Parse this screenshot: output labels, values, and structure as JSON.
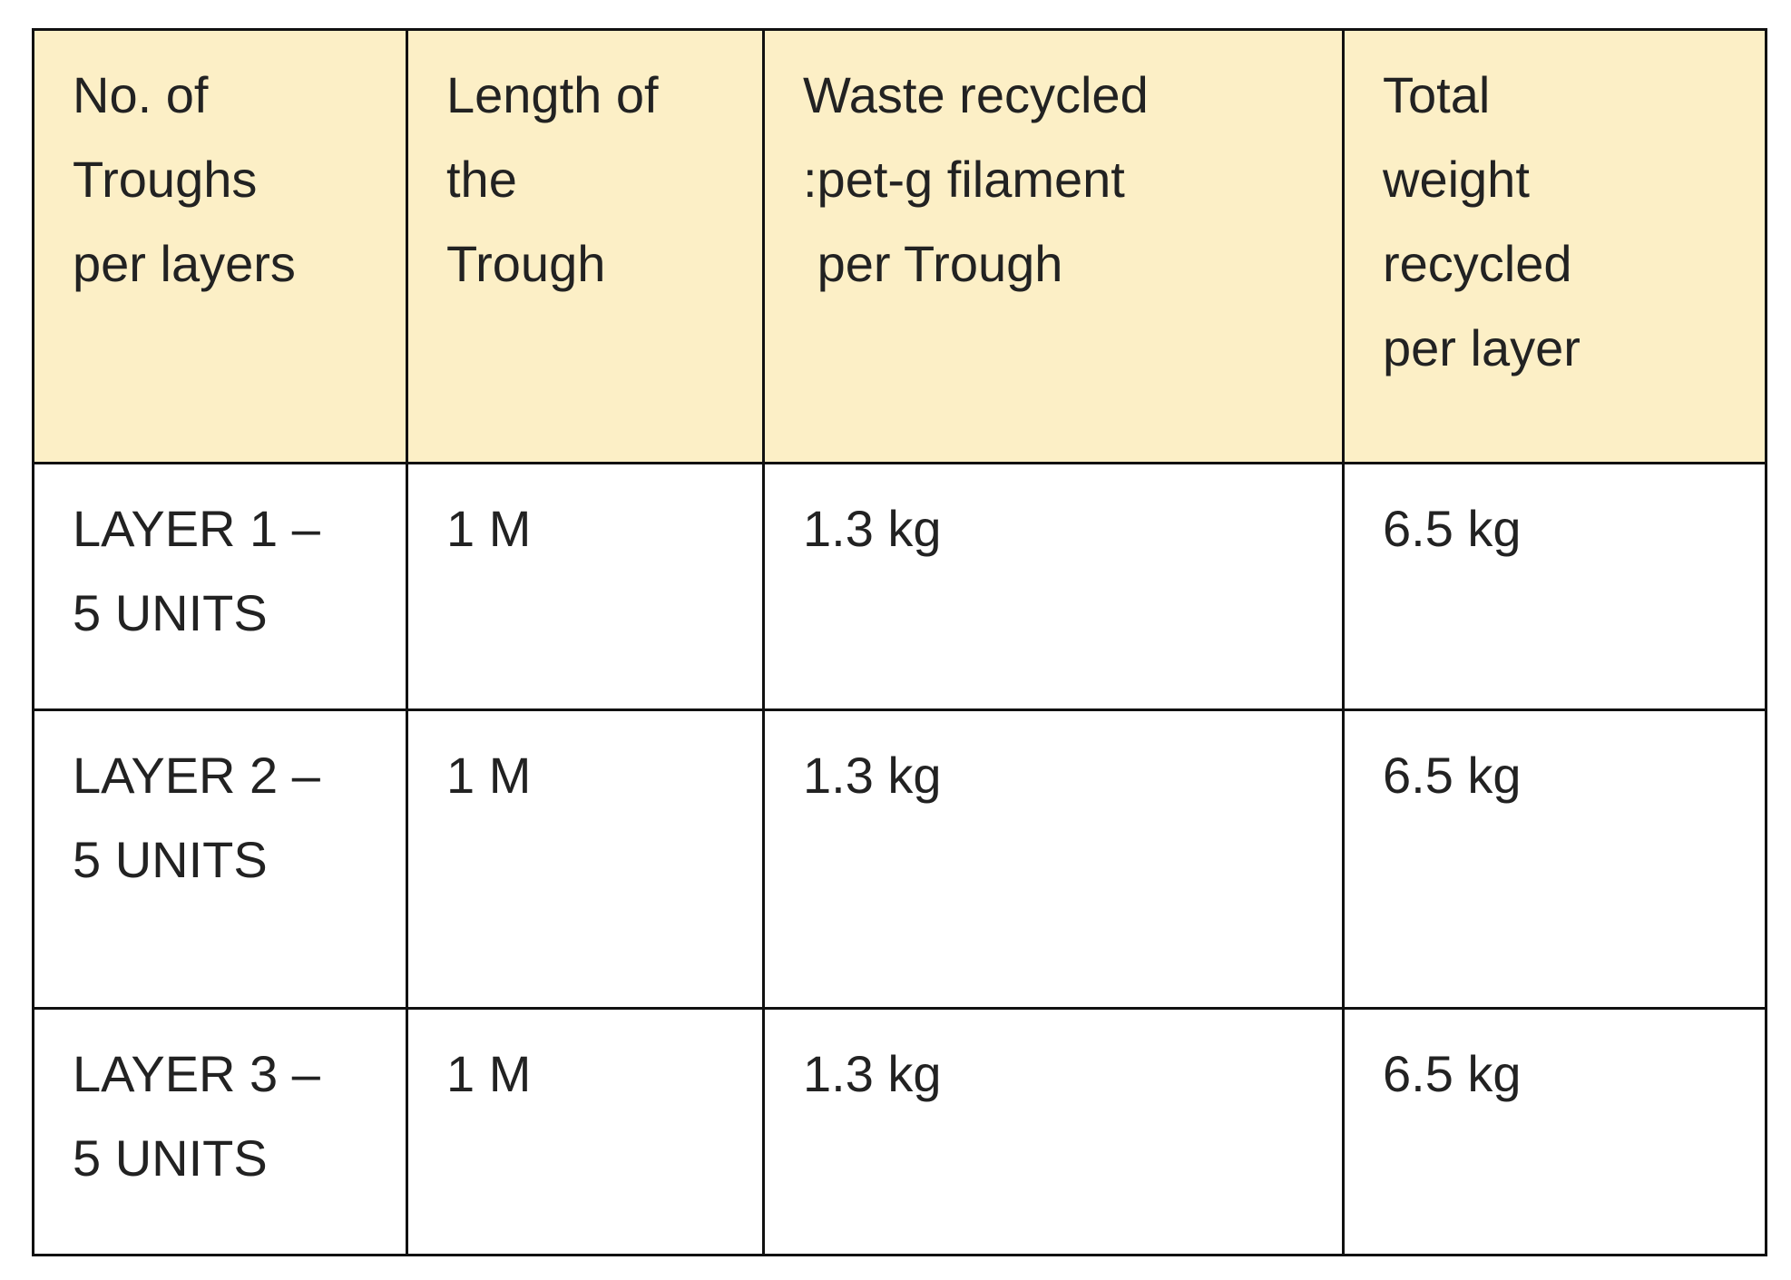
{
  "table": {
    "header": [
      "No. of\nTroughs\nper layers",
      "Length of\nthe\nTrough",
      "Waste recycled\n:pet-g filament\n per Trough",
      "Total\nweight\nrecycled\nper layer"
    ],
    "rows": [
      [
        "LAYER 1 –\n5 UNITS",
        "1 M",
        "1.3 kg",
        "6.5 kg"
      ],
      [
        "LAYER 2 –\n5 UNITS",
        "1 M",
        "1.3 kg",
        "6.5 kg"
      ],
      [
        "LAYER 3 –\n5 UNITS",
        "1 M",
        "1.3 kg",
        "6.5 kg"
      ]
    ]
  }
}
